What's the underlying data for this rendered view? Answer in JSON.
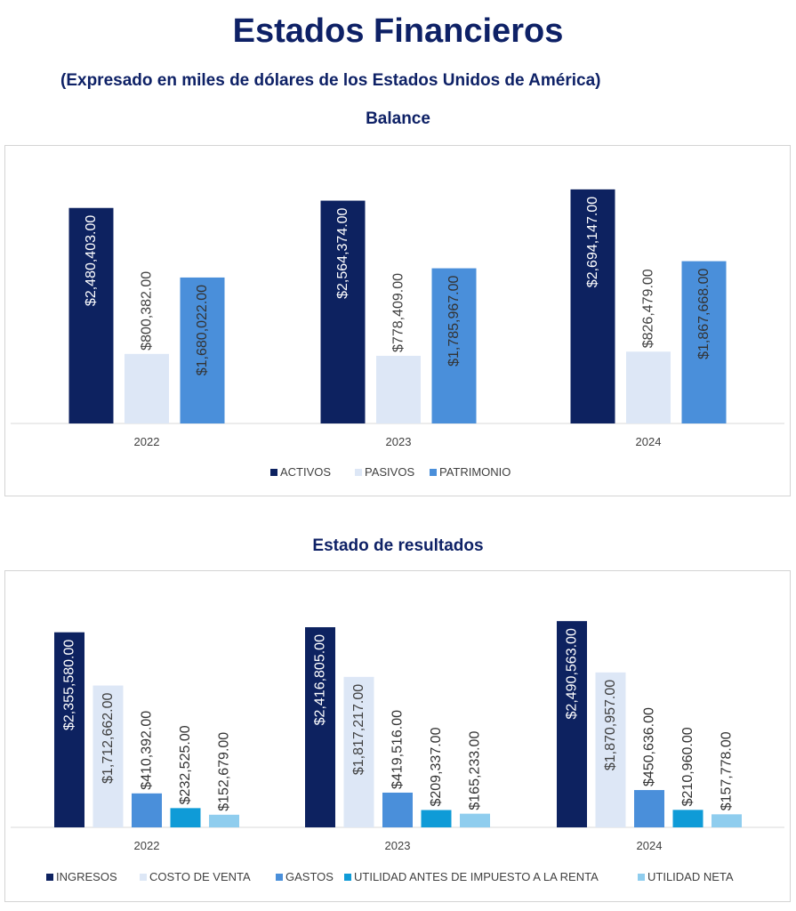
{
  "header": {
    "title": "Estados Financieros",
    "subtitle": "(Expresado en miles de dólares de los Estados Unidos de América)"
  },
  "sections": [
    {
      "title": "Balance"
    },
    {
      "title": "Estado de resultados"
    }
  ],
  "chart_data": [
    {
      "type": "bar",
      "title": "Balance",
      "categories": [
        "2022",
        "2023",
        "2024"
      ],
      "ylim": [
        0,
        3000000
      ],
      "grid": false,
      "legend_position": "bottom",
      "series": [
        {
          "name": "ACTIVOS",
          "color": "#0d2260",
          "values": [
            2480403,
            2564374,
            2694147
          ],
          "labels": [
            "$2,480,403.00",
            "$2,564,374.00",
            "$2,694,147.00"
          ],
          "label_color": "#ffffff"
        },
        {
          "name": "PASIVOS",
          "color": "#dde7f6",
          "values": [
            800382,
            778409,
            826479
          ],
          "labels": [
            "$800,382.00",
            "$778,409.00",
            "$826,479.00"
          ],
          "label_color": "#404040"
        },
        {
          "name": "PATRIMONIO",
          "color": "#4a8fda",
          "values": [
            1680022,
            1785967,
            1867668
          ],
          "labels": [
            "$1,680,022.00",
            "$1,785,967.00",
            "$1,867,668.00"
          ],
          "label_color": "#333333"
        }
      ]
    },
    {
      "type": "bar",
      "title": "Estado de resultados",
      "categories": [
        "2022",
        "2023",
        "2024"
      ],
      "ylim": [
        0,
        2750000
      ],
      "grid": false,
      "legend_position": "bottom",
      "series": [
        {
          "name": "INGRESOS",
          "color": "#0d2260",
          "values": [
            2355580,
            2416805,
            2490563
          ],
          "labels": [
            "$2,355,580.00",
            "$2,416,805.00",
            "$2,490,563.00"
          ],
          "label_color": "#ffffff"
        },
        {
          "name": "COSTO DE VENTA",
          "color": "#dde7f6",
          "values": [
            1712662,
            1817217,
            1870957
          ],
          "labels": [
            "$1,712,662.00",
            "$1,817,217.00",
            "$1,870,957.00"
          ],
          "label_color": "#404040"
        },
        {
          "name": "GASTOS",
          "color": "#4a8fda",
          "values": [
            410392,
            419516,
            450636
          ],
          "labels": [
            "$410,392.00",
            "$419,516.00",
            "$450,636.00"
          ],
          "label_color": "#333333"
        },
        {
          "name": "UTILIDAD ANTES DE IMPUESTO A LA RENTA",
          "color": "#0f9bd7",
          "values": [
            232525,
            209337,
            210960
          ],
          "labels": [
            "$232,525.00",
            "$209,337.00",
            "$210,960.00"
          ],
          "label_color": "#333333"
        },
        {
          "name": "UTILIDAD NETA",
          "color": "#8fcdee",
          "values": [
            152679,
            165233,
            157778
          ],
          "labels": [
            "$152,679.00",
            "$165,233.00",
            "$157,778.00"
          ],
          "label_color": "#333333"
        }
      ]
    }
  ]
}
